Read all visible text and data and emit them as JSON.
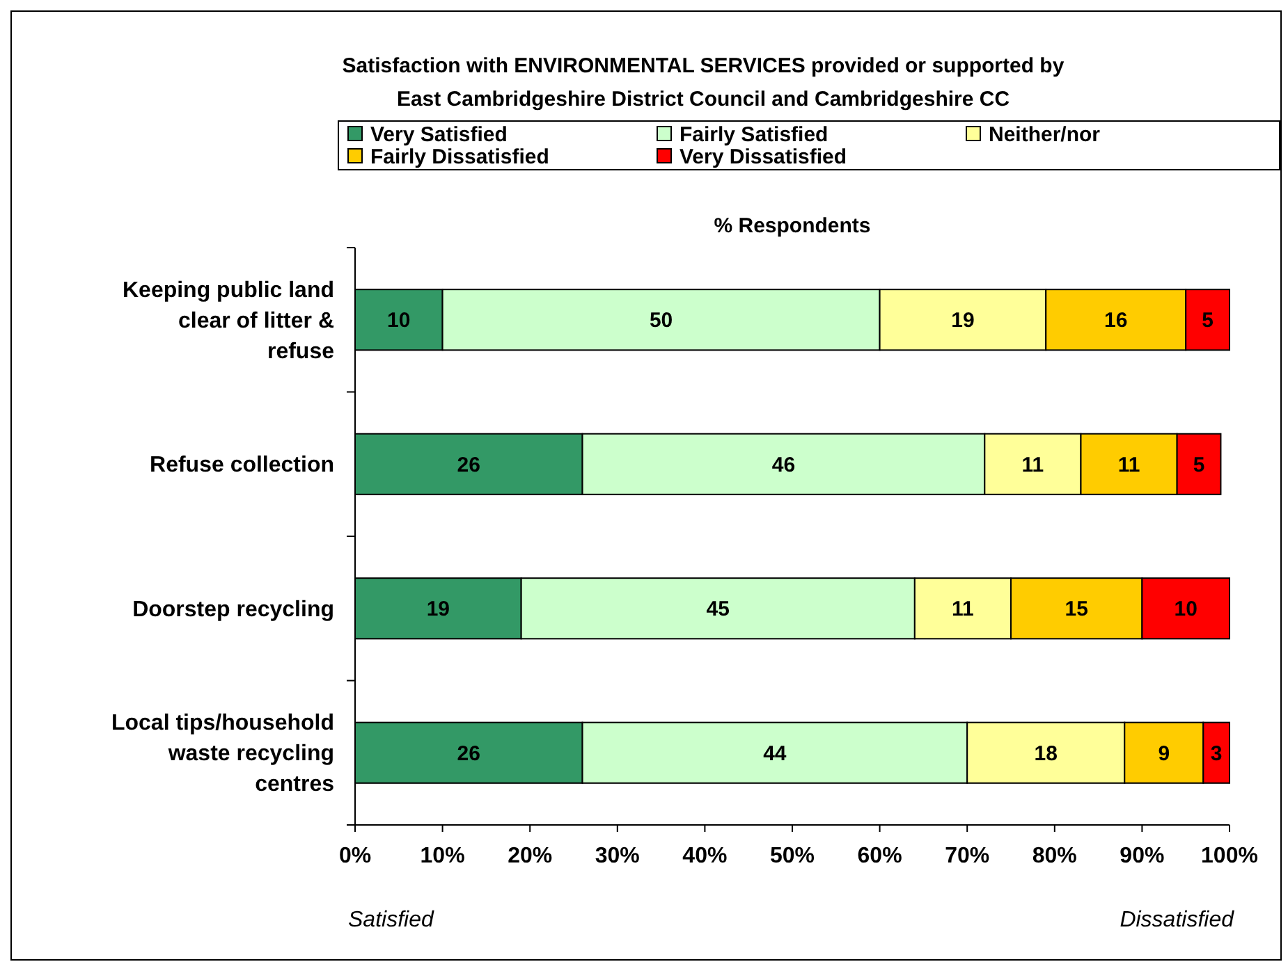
{
  "chart_data": {
    "type": "bar",
    "orientation": "horizontal",
    "stacked": true,
    "title": "Satisfaction with ENVIRONMENTAL SERVICES provided or supported by East Cambridgeshire District Council and Cambridgeshire CC",
    "xlabel": "% Respondents",
    "categories": [
      "Keeping public land clear of litter & refuse",
      "Refuse collection",
      "Doorstep recycling",
      "Local tips/household waste recycling centres"
    ],
    "series": [
      {
        "name": "Very Satisfied",
        "color": "#339966",
        "values": [
          10,
          26,
          19,
          26
        ]
      },
      {
        "name": "Fairly Satisfied",
        "color": "#ccffcc",
        "values": [
          50,
          46,
          45,
          44
        ]
      },
      {
        "name": "Neither/nor",
        "color": "#ffff99",
        "values": [
          19,
          11,
          11,
          18
        ]
      },
      {
        "name": "Fairly Dissatisfied",
        "color": "#ffcc00",
        "values": [
          16,
          11,
          15,
          9
        ]
      },
      {
        "name": "Very Dissatisfied",
        "color": "#ff0000",
        "values": [
          5,
          5,
          10,
          3
        ]
      }
    ],
    "xlim": [
      0,
      100
    ],
    "xticks": [
      {
        "value": 0,
        "label": "0%"
      },
      {
        "value": 10,
        "label": "10%"
      },
      {
        "value": 20,
        "label": "20%"
      },
      {
        "value": 30,
        "label": "30%"
      },
      {
        "value": 40,
        "label": "40%"
      },
      {
        "value": 50,
        "label": "50%"
      },
      {
        "value": 60,
        "label": "60%"
      },
      {
        "value": 70,
        "label": "70%"
      },
      {
        "value": 80,
        "label": "80%"
      },
      {
        "value": 90,
        "label": "90%"
      },
      {
        "value": 100,
        "label": "100%"
      }
    ],
    "data_labels": true,
    "grid": false,
    "legend": "top",
    "annotations": [
      "Satisfied",
      "Dissatisfied"
    ]
  }
}
